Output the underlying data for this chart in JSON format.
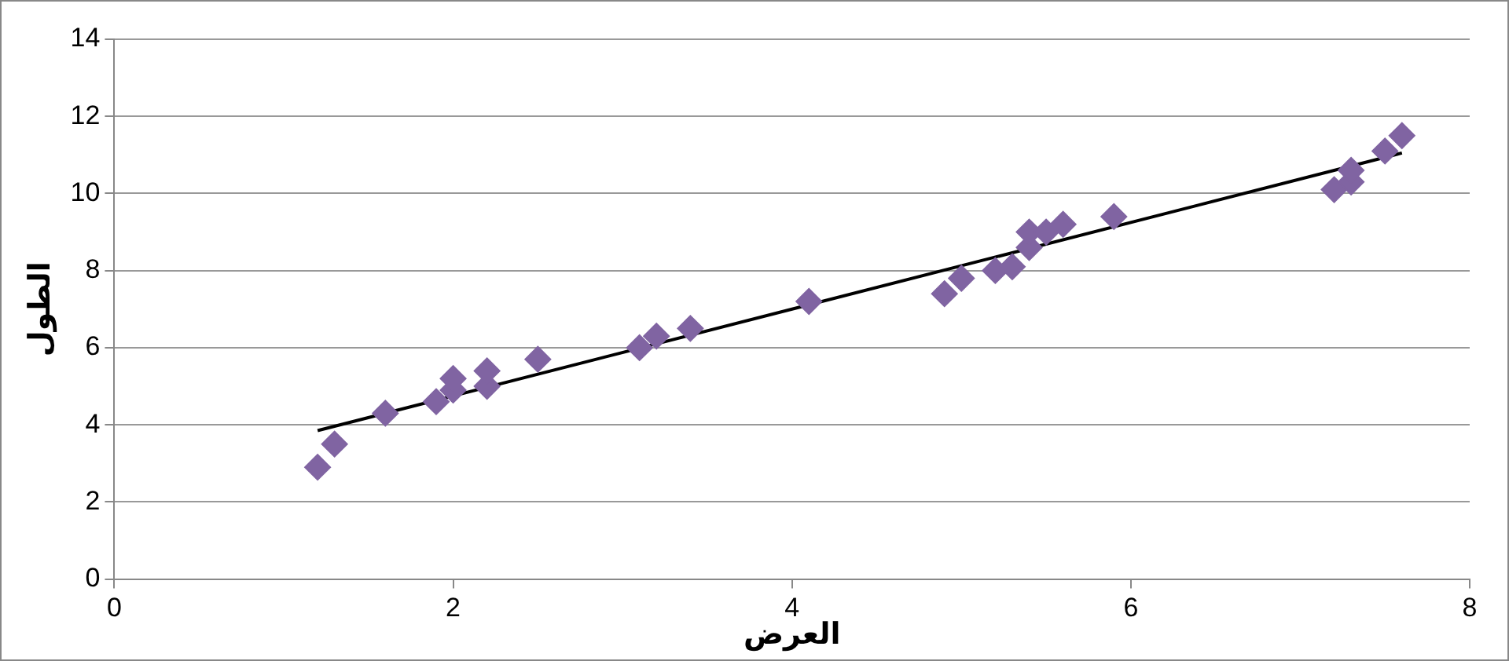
{
  "chart_data": {
    "type": "scatter",
    "xlabel": "العرض",
    "ylabel": "الطول",
    "xlim": [
      0,
      8
    ],
    "xticks": [
      0,
      2,
      4,
      6,
      8
    ],
    "ylim": [
      0,
      14
    ],
    "yticks": [
      0,
      2,
      4,
      6,
      8,
      10,
      12,
      14
    ],
    "grid": "y",
    "legend": false,
    "marker": "diamond",
    "series": [
      {
        "type": "scatter",
        "color": "#8064a2",
        "x": [
          1.2,
          1.3,
          1.6,
          1.9,
          2.0,
          2.0,
          2.2,
          2.2,
          2.5,
          3.1,
          3.2,
          3.4,
          4.1,
          4.9,
          5.0,
          5.2,
          5.3,
          5.4,
          5.4,
          5.5,
          5.6,
          5.9,
          7.2,
          7.3,
          7.3,
          7.5,
          7.6
        ],
        "values": [
          2.9,
          3.5,
          4.3,
          4.6,
          4.9,
          5.2,
          5.0,
          5.4,
          5.7,
          6.0,
          6.3,
          6.5,
          7.2,
          7.4,
          7.8,
          8.0,
          8.1,
          8.6,
          9.0,
          9.0,
          9.2,
          9.4,
          10.1,
          10.3,
          10.6,
          11.1,
          11.5
        ]
      },
      {
        "type": "line",
        "color": "#000000",
        "marker": "none",
        "x": [
          1.2,
          7.6
        ],
        "values": [
          3.85,
          11.05
        ]
      }
    ]
  }
}
